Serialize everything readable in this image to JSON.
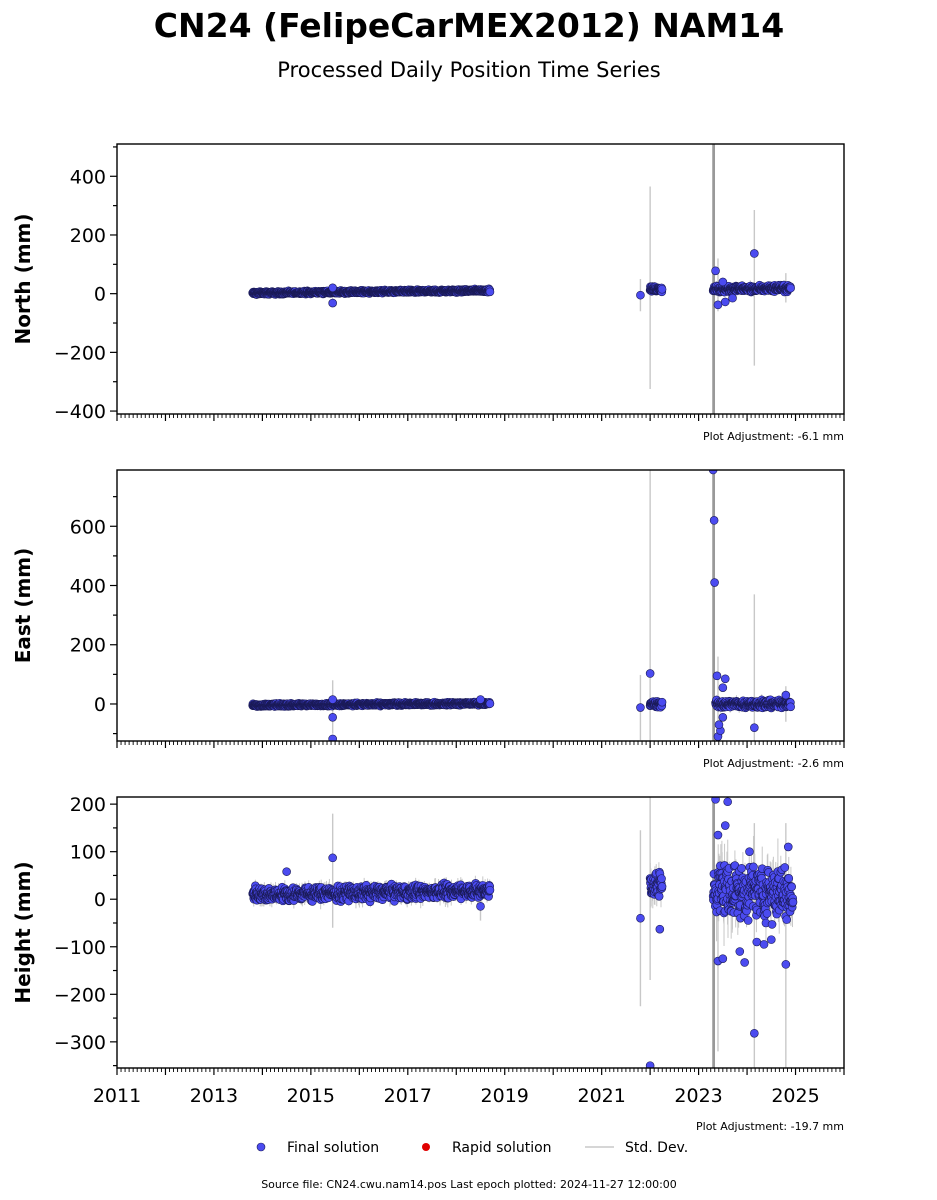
{
  "title": "CN24 (FelipeCarMEX2012) NAM14",
  "subtitle": "Processed Daily Position Time Series",
  "legend": {
    "final": "Final solution",
    "rapid": "Rapid solution",
    "std": "Std. Dev."
  },
  "footer": "Source file: CN24.cwu.nam14.pos  Last epoch plotted: 2024-11-27 12:00:00",
  "colors": {
    "final": "#4b4bf0",
    "edge": "#1a1a55",
    "rapid": "#e00000",
    "std": "#c8c8c8",
    "std_dark": "#999999"
  },
  "chart_data": [
    {
      "type": "scatter",
      "ylabel": "North (mm)",
      "adjustment": "Plot Adjustment: -6.1 mm",
      "xlim": [
        2011.0,
        2026.0
      ],
      "ylim": [
        -410,
        510
      ],
      "yticks": [
        -400,
        -200,
        0,
        200,
        400
      ],
      "yticklabels": [
        "−400",
        "−200",
        "0",
        "200",
        "400"
      ],
      "show_xlabels": false,
      "segments": [
        {
          "x0": 2013.8,
          "x1": 2018.7,
          "y0": 2,
          "y1": 11,
          "spread": 4,
          "std": 5
        },
        {
          "x0": 2022.0,
          "x1": 2022.25,
          "y0": 15,
          "y1": 15,
          "spread": 7,
          "std": 8
        },
        {
          "x0": 2023.3,
          "x1": 2024.9,
          "y0": 15,
          "y1": 20,
          "spread": 9,
          "std": 14
        }
      ],
      "points": [
        {
          "x": 2015.45,
          "y": -32
        },
        {
          "x": 2015.45,
          "y": 20
        },
        {
          "x": 2021.8,
          "y": -5
        },
        {
          "x": 2023.35,
          "y": 78
        },
        {
          "x": 2023.4,
          "y": -38
        },
        {
          "x": 2023.55,
          "y": -28
        },
        {
          "x": 2024.15,
          "y": 137
        },
        {
          "x": 2023.5,
          "y": 40
        },
        {
          "x": 2023.7,
          "y": -15
        }
      ],
      "stds": [
        {
          "x": 2021.8,
          "y": -5,
          "e": 55
        },
        {
          "x": 2022.0,
          "y": 20,
          "e": 345
        },
        {
          "x": 2023.3,
          "y": 10,
          "e": 700
        },
        {
          "x": 2023.32,
          "y": 10,
          "e": 520
        },
        {
          "x": 2023.4,
          "y": 30,
          "e": 90
        },
        {
          "x": 2024.15,
          "y": 20,
          "e": 265
        },
        {
          "x": 2024.8,
          "y": 20,
          "e": 50
        },
        {
          "x": 2015.45,
          "y": -5,
          "e": 35
        }
      ]
    },
    {
      "type": "scatter",
      "ylabel": "East (mm)",
      "adjustment": "Plot Adjustment: -2.6 mm",
      "xlim": [
        2011.0,
        2026.0
      ],
      "ylim": [
        -125,
        790
      ],
      "yticks": [
        0,
        200,
        400,
        600
      ],
      "yticklabels": [
        "0",
        "200",
        "400",
        "600"
      ],
      "show_xlabels": false,
      "segments": [
        {
          "x0": 2013.8,
          "x1": 2018.7,
          "y0": -4,
          "y1": 2,
          "spread": 4,
          "std": 5
        },
        {
          "x0": 2022.0,
          "x1": 2022.25,
          "y0": 0,
          "y1": 0,
          "spread": 9,
          "std": 10
        },
        {
          "x0": 2023.35,
          "x1": 2024.9,
          "y0": 0,
          "y1": 0,
          "spread": 10,
          "std": 15
        }
      ],
      "points": [
        {
          "x": 2015.45,
          "y": -45
        },
        {
          "x": 2015.45,
          "y": -118
        },
        {
          "x": 2015.45,
          "y": 15
        },
        {
          "x": 2018.5,
          "y": 15
        },
        {
          "x": 2021.8,
          "y": -12
        },
        {
          "x": 2022.0,
          "y": 103
        },
        {
          "x": 2023.3,
          "y": 790
        },
        {
          "x": 2023.32,
          "y": 620
        },
        {
          "x": 2023.33,
          "y": 410
        },
        {
          "x": 2023.38,
          "y": 95
        },
        {
          "x": 2023.4,
          "y": -110
        },
        {
          "x": 2023.45,
          "y": -90
        },
        {
          "x": 2023.55,
          "y": 85
        },
        {
          "x": 2023.5,
          "y": 55
        },
        {
          "x": 2024.15,
          "y": -80
        },
        {
          "x": 2023.42,
          "y": -70
        },
        {
          "x": 2023.5,
          "y": -45
        },
        {
          "x": 2024.8,
          "y": 30
        }
      ],
      "stds": [
        {
          "x": 2015.45,
          "y": -10,
          "e": 90
        },
        {
          "x": 2021.8,
          "y": -12,
          "e": 110
        },
        {
          "x": 2022.0,
          "y": 300,
          "e": 500
        },
        {
          "x": 2023.3,
          "y": 400,
          "e": 600
        },
        {
          "x": 2023.32,
          "y": 300,
          "e": 500
        },
        {
          "x": 2023.4,
          "y": 30,
          "e": 130
        },
        {
          "x": 2024.15,
          "y": 100,
          "e": 270
        },
        {
          "x": 2024.8,
          "y": 0,
          "e": 60
        }
      ]
    },
    {
      "type": "scatter",
      "ylabel": "Height (mm)",
      "adjustment": "Plot Adjustment: -19.7 mm",
      "xlim": [
        2011.0,
        2026.0
      ],
      "ylim": [
        -355,
        215
      ],
      "yticks": [
        -300,
        -200,
        -100,
        0,
        100,
        200
      ],
      "yticklabels": [
        "−300",
        "−200",
        "−100",
        "0",
        "100",
        "200"
      ],
      "show_xlabels": true,
      "xticks": [
        2011,
        2013,
        2015,
        2017,
        2019,
        2021,
        2023,
        2025
      ],
      "segments": [
        {
          "x0": 2013.8,
          "x1": 2018.7,
          "y0": 10,
          "y1": 18,
          "spread": 12,
          "std": 15
        },
        {
          "x0": 2022.0,
          "x1": 2022.25,
          "y0": 30,
          "y1": 30,
          "spread": 25,
          "std": 30
        },
        {
          "x0": 2023.3,
          "x1": 2024.95,
          "y0": 20,
          "y1": 15,
          "spread": 45,
          "std": 50
        }
      ],
      "points": [
        {
          "x": 2015.45,
          "y": 87
        },
        {
          "x": 2014.5,
          "y": 58
        },
        {
          "x": 2018.5,
          "y": -15
        },
        {
          "x": 2021.8,
          "y": -40
        },
        {
          "x": 2022.0,
          "y": -350
        },
        {
          "x": 2022.2,
          "y": -63
        },
        {
          "x": 2023.35,
          "y": 210
        },
        {
          "x": 2023.6,
          "y": 205
        },
        {
          "x": 2023.4,
          "y": 135
        },
        {
          "x": 2023.55,
          "y": 155
        },
        {
          "x": 2024.15,
          "y": -282
        },
        {
          "x": 2023.4,
          "y": -130
        },
        {
          "x": 2023.5,
          "y": -125
        },
        {
          "x": 2023.95,
          "y": -133
        },
        {
          "x": 2024.8,
          "y": -137
        },
        {
          "x": 2023.85,
          "y": -110
        },
        {
          "x": 2024.2,
          "y": -90
        },
        {
          "x": 2024.5,
          "y": -85
        },
        {
          "x": 2024.35,
          "y": -95
        },
        {
          "x": 2024.85,
          "y": 110
        },
        {
          "x": 2024.05,
          "y": 100
        }
      ],
      "stds": [
        {
          "x": 2015.45,
          "y": 60,
          "e": 120
        },
        {
          "x": 2021.8,
          "y": -40,
          "e": 185
        },
        {
          "x": 2022.0,
          "y": 30,
          "e": 200
        },
        {
          "x": 2023.3,
          "y": -50,
          "e": 400
        },
        {
          "x": 2023.32,
          "y": -50,
          "e": 350
        },
        {
          "x": 2023.4,
          "y": -120,
          "e": 200
        },
        {
          "x": 2024.15,
          "y": -100,
          "e": 260
        },
        {
          "x": 2024.8,
          "y": -100,
          "e": 260
        },
        {
          "x": 2018.5,
          "y": -20,
          "e": 25
        }
      ]
    }
  ]
}
